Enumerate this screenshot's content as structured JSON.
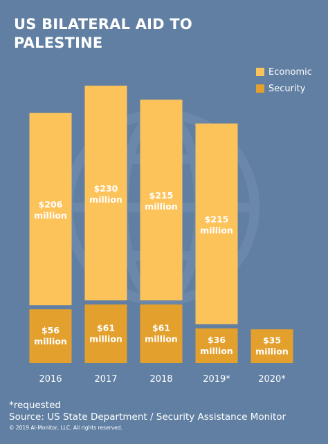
{
  "title": "US BILATERAL AID TO PALESTINE",
  "colors": {
    "background": "#607fa2",
    "economic": "#fdc35b",
    "security": "#e3a02c",
    "text": "#ffffff"
  },
  "legend": [
    {
      "name": "Economic",
      "color": "#fdc35b"
    },
    {
      "name": "Security",
      "color": "#e3a02c"
    }
  ],
  "chart_data": {
    "type": "bar",
    "stacked": true,
    "categories": [
      "2016",
      "2017",
      "2018",
      "2019*",
      "2020*"
    ],
    "series": [
      {
        "name": "Economic",
        "values": [
          206,
          230,
          215,
          215,
          null
        ],
        "labels": [
          "$206 million",
          "$230 million",
          "$215 million",
          "$215 million",
          ""
        ]
      },
      {
        "name": "Security",
        "values": [
          56,
          61,
          61,
          36,
          35
        ],
        "labels": [
          "$56 million",
          "$61 million",
          "$61 million",
          "$36 million",
          "$35 million"
        ]
      }
    ],
    "title": "US BILATERAL AID TO PALESTINE",
    "xlabel": "",
    "ylabel": "",
    "grid": false,
    "legend_position": "top-right"
  },
  "footer": {
    "note": "*requested",
    "source": "Source: US State Department / Security Assistance Monitor",
    "copyright": "© 2019 Al-Monitor, LLC. All rights reserved."
  }
}
